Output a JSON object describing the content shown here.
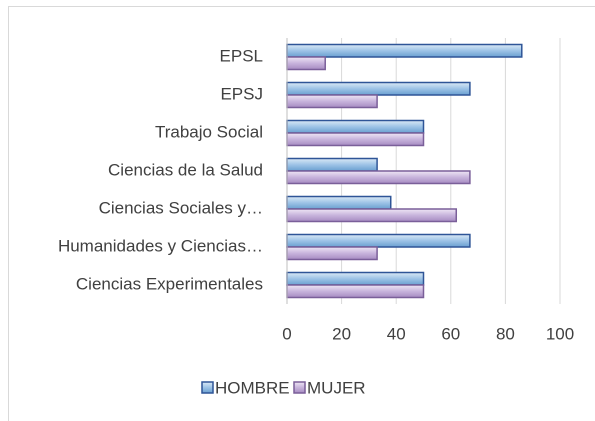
{
  "chart_data": {
    "type": "hbar",
    "categories": [
      "EPSL",
      "EPSJ",
      "Trabajo Social",
      "Ciencias de la Salud",
      "Ciencias Sociales y…",
      "Humanidades y Ciencias…",
      "Ciencias Experimentales"
    ],
    "series": [
      {
        "name": "HOMBRE",
        "color": "#9dc3e6",
        "values": [
          86,
          67,
          50,
          33,
          38,
          67,
          50
        ]
      },
      {
        "name": "MUJER",
        "color": "#c8b4dc",
        "values": [
          14,
          33,
          50,
          67,
          62,
          33,
          50
        ]
      }
    ],
    "xlim": [
      0,
      100
    ],
    "xticks": [
      0,
      20,
      40,
      60,
      80,
      100
    ],
    "grid": true,
    "legend": "bottom"
  }
}
